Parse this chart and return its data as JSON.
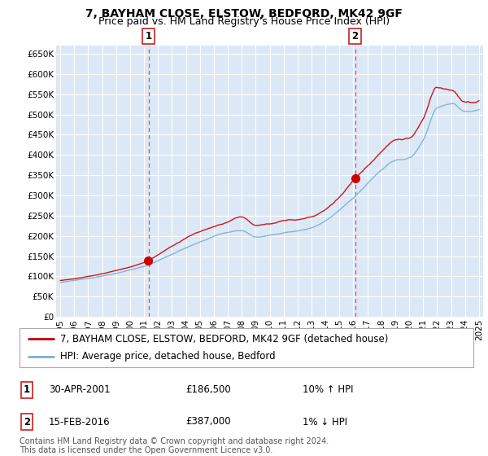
{
  "title": "7, BAYHAM CLOSE, ELSTOW, BEDFORD, MK42 9GF",
  "subtitle": "Price paid vs. HM Land Registry's House Price Index (HPI)",
  "ylim": [
    0,
    670000
  ],
  "yticks": [
    0,
    50000,
    100000,
    150000,
    200000,
    250000,
    300000,
    350000,
    400000,
    450000,
    500000,
    550000,
    600000,
    650000
  ],
  "ytick_labels": [
    "£0",
    "£50K",
    "£100K",
    "£150K",
    "£200K",
    "£250K",
    "£300K",
    "£350K",
    "£400K",
    "£450K",
    "£500K",
    "£550K",
    "£600K",
    "£650K"
  ],
  "xlim_start": 1994.7,
  "xlim_end": 2025.3,
  "xticks": [
    1995,
    1996,
    1997,
    1998,
    1999,
    2000,
    2001,
    2002,
    2003,
    2004,
    2005,
    2006,
    2007,
    2008,
    2009,
    2010,
    2011,
    2012,
    2013,
    2014,
    2015,
    2016,
    2017,
    2018,
    2019,
    2020,
    2021,
    2022,
    2023,
    2024,
    2025
  ],
  "background_color": "#ffffff",
  "plot_background": "#dce8f5",
  "grid_color": "#ffffff",
  "red_line_color": "#cc0000",
  "blue_line_color": "#7ab0d4",
  "annotation_line_color": "#cc3333",
  "legend_label_red": "7, BAYHAM CLOSE, ELSTOW, BEDFORD, MK42 9GF (detached house)",
  "legend_label_blue": "HPI: Average price, detached house, Bedford",
  "sale1_date": "30-APR-2001",
  "sale1_price": "£186,500",
  "sale1_hpi": "10% ↑ HPI",
  "sale1_x": 2001.33,
  "sale1_y": 186500,
  "sale2_date": "15-FEB-2016",
  "sale2_price": "£387,000",
  "sale2_hpi": "1% ↓ HPI",
  "sale2_x": 2016.12,
  "sale2_y": 387000,
  "footer": "Contains HM Land Registry data © Crown copyright and database right 2024.\nThis data is licensed under the Open Government Licence v3.0.",
  "title_fontsize": 10,
  "subtitle_fontsize": 9,
  "tick_fontsize": 7.5,
  "legend_fontsize": 8.5,
  "footer_fontsize": 7
}
